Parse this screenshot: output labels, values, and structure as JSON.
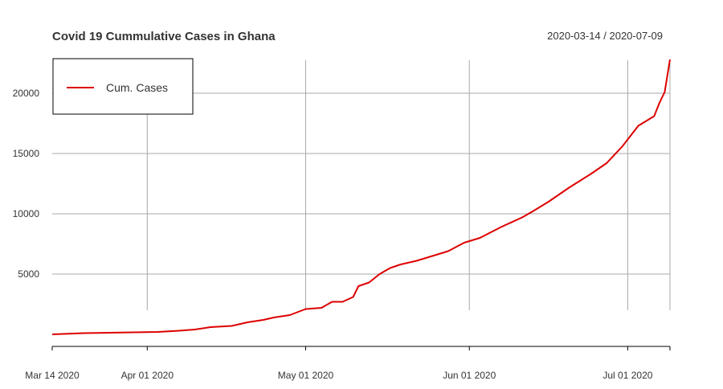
{
  "chart_data": {
    "type": "line",
    "title": "Covid 19 Cummulative Cases in Ghana",
    "date_range": "2020-03-14 / 2020-07-09",
    "xlabel": "",
    "ylabel": "",
    "ylim": [
      0,
      23000
    ],
    "xlim": [
      "2020-03-14",
      "2020-07-09"
    ],
    "grid": true,
    "legend": {
      "position": "top-left",
      "box": true
    },
    "series_colors": [
      "#dd0000"
    ],
    "y_ticks": [
      5000,
      10000,
      15000,
      20000
    ],
    "x_ticks": [
      {
        "date": "2020-03-14",
        "label": "Mar 14 2020"
      },
      {
        "date": "2020-04-01",
        "label": "Apr 01 2020"
      },
      {
        "date": "2020-05-01",
        "label": "May 01 2020"
      },
      {
        "date": "2020-06-01",
        "label": "Jun 01 2020"
      },
      {
        "date": "2020-07-01",
        "label": "Jul 01 2020"
      },
      {
        "date": "2020-07-09",
        "label": ""
      }
    ],
    "series": [
      {
        "name": "Cum. Cases",
        "x": [
          "2020-03-14",
          "2020-03-20",
          "2020-03-27",
          "2020-04-03",
          "2020-04-07",
          "2020-04-10",
          "2020-04-13",
          "2020-04-17",
          "2020-04-20",
          "2020-04-23",
          "2020-04-25",
          "2020-04-28",
          "2020-05-01",
          "2020-05-04",
          "2020-05-06",
          "2020-05-08",
          "2020-05-10",
          "2020-05-11",
          "2020-05-13",
          "2020-05-15",
          "2020-05-17",
          "2020-05-19",
          "2020-05-22",
          "2020-05-25",
          "2020-05-28",
          "2020-05-31",
          "2020-06-03",
          "2020-06-07",
          "2020-06-11",
          "2020-06-13",
          "2020-06-16",
          "2020-06-20",
          "2020-06-24",
          "2020-06-27",
          "2020-06-30",
          "2020-07-03",
          "2020-07-06",
          "2020-07-07",
          "2020-07-08",
          "2020-07-09"
        ],
        "values": [
          0,
          100,
          150,
          200,
          300,
          400,
          600,
          700,
          1000,
          1200,
          1400,
          1600,
          2100,
          2200,
          2700,
          2700,
          3100,
          4000,
          4300,
          5000,
          5500,
          5800,
          6100,
          6500,
          6900,
          7600,
          8000,
          8900,
          9700,
          10200,
          11000,
          12200,
          13300,
          14200,
          15600,
          17300,
          18100,
          19200,
          20100,
          22800
        ]
      }
    ]
  }
}
